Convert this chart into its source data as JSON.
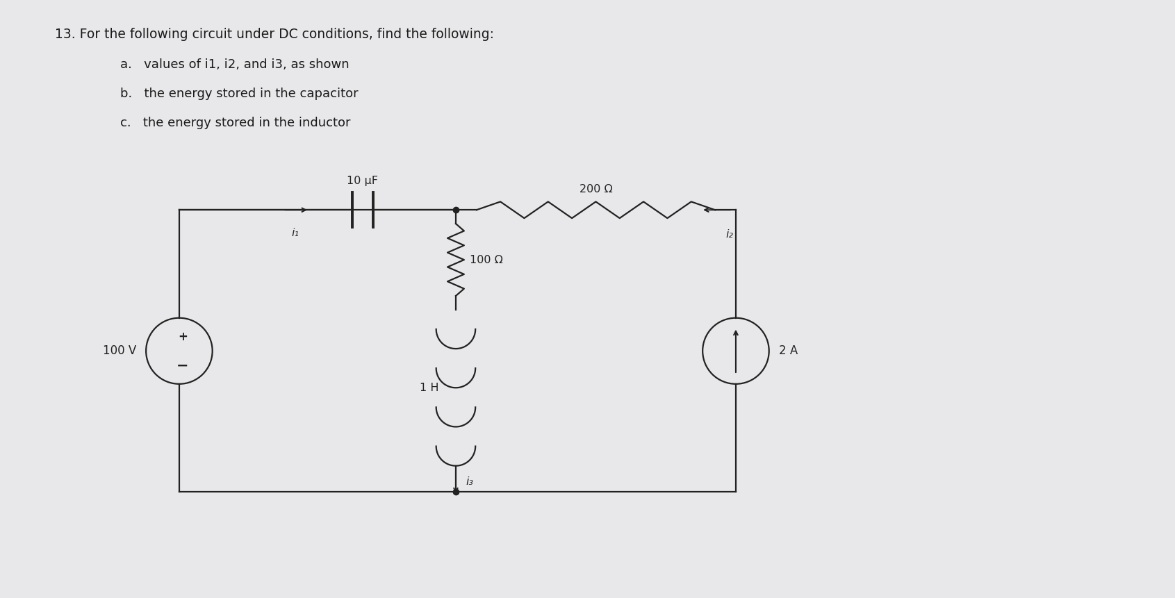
{
  "title_line1": "13. For the following circuit under DC conditions, find the following:",
  "title_line2a": "a.   values of i1, i2, and i3, as shown",
  "title_line2b": "b.   the energy stored in the capacitor",
  "title_line2c": "c.   the energy stored in the inductor",
  "bg_color": "#e8e8ea",
  "text_color": "#1a1a1a",
  "circuit_color": "#222222",
  "voltage_source": "100 V",
  "capacitor_label": "10 μF",
  "resistor1_label": "100 Ω",
  "resistor2_label": "200 Ω",
  "inductor_label": "1 H",
  "current_source_label": "2 A",
  "i1_label": "i₁",
  "i2_label": "i₂",
  "i3_label": "i₃"
}
